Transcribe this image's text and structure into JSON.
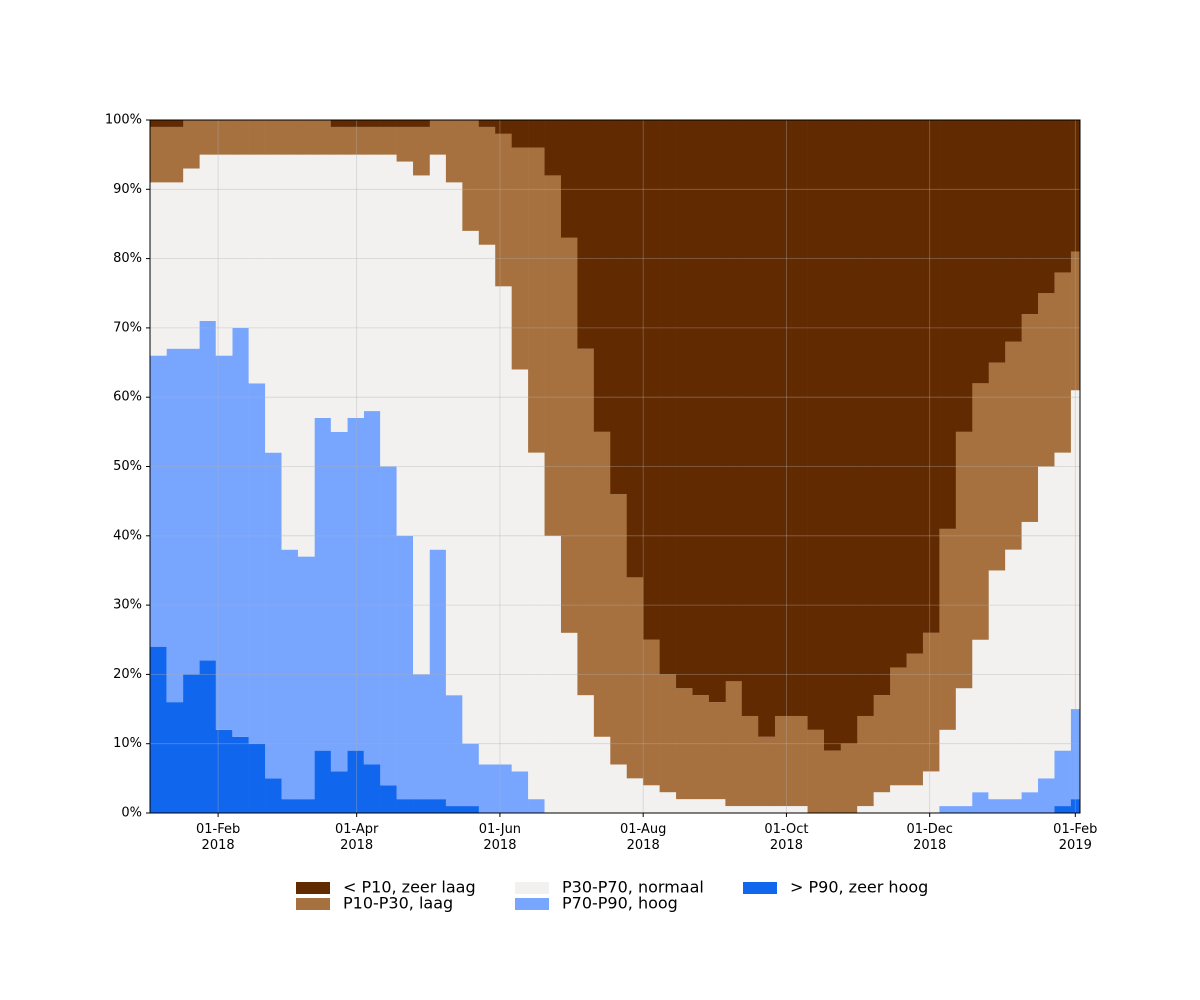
{
  "chart_data": {
    "type": "stacked-step-area",
    "x": [
      "2018-01-03",
      "2018-01-10",
      "2018-01-17",
      "2018-01-24",
      "2018-01-31",
      "2018-02-07",
      "2018-02-14",
      "2018-02-21",
      "2018-02-28",
      "2018-03-07",
      "2018-03-14",
      "2018-03-21",
      "2018-03-28",
      "2018-04-04",
      "2018-04-11",
      "2018-04-18",
      "2018-04-25",
      "2018-05-02",
      "2018-05-09",
      "2018-05-16",
      "2018-05-23",
      "2018-05-30",
      "2018-06-06",
      "2018-06-13",
      "2018-06-20",
      "2018-06-27",
      "2018-07-04",
      "2018-07-11",
      "2018-07-18",
      "2018-07-25",
      "2018-08-01",
      "2018-08-08",
      "2018-08-15",
      "2018-08-22",
      "2018-08-29",
      "2018-09-05",
      "2018-09-12",
      "2018-09-19",
      "2018-09-26",
      "2018-10-03",
      "2018-10-10",
      "2018-10-17",
      "2018-10-24",
      "2018-10-31",
      "2018-11-07",
      "2018-11-14",
      "2018-11-21",
      "2018-11-28",
      "2018-12-05",
      "2018-12-12",
      "2018-12-19",
      "2018-12-26",
      "2019-01-02",
      "2019-01-09",
      "2019-01-16",
      "2019-01-23",
      "2019-01-30"
    ],
    "series": [
      {
        "name": "< P10, zeer laag",
        "color": "#612a00",
        "values": [
          1,
          1,
          0,
          0,
          0,
          0,
          0,
          0,
          0,
          0,
          0,
          1,
          1,
          1,
          1,
          1,
          1,
          0,
          0,
          0,
          1,
          2,
          4,
          4,
          8,
          17,
          33,
          45,
          54,
          66,
          75,
          80,
          82,
          83,
          84,
          81,
          86,
          89,
          86,
          86,
          88,
          91,
          90,
          86,
          83,
          79,
          77,
          74,
          59,
          45,
          38,
          35,
          32,
          28,
          25,
          22,
          19
        ]
      },
      {
        "name": "P10-P30, laag",
        "color": "#a6713f",
        "values": [
          8,
          8,
          7,
          5,
          5,
          5,
          5,
          5,
          5,
          5,
          5,
          4,
          4,
          4,
          4,
          5,
          7,
          5,
          9,
          16,
          17,
          22,
          32,
          44,
          52,
          57,
          50,
          44,
          39,
          29,
          21,
          17,
          16,
          15,
          14,
          18,
          13,
          10,
          13,
          13,
          12,
          9,
          10,
          13,
          14,
          17,
          19,
          20,
          29,
          37,
          37,
          30,
          30,
          30,
          25,
          26,
          20
        ]
      },
      {
        "name": "P30-P70, normaal",
        "color": "#f2f1f0",
        "values": [
          25,
          24,
          26,
          24,
          29,
          25,
          33,
          43,
          57,
          58,
          38,
          40,
          38,
          37,
          45,
          54,
          72,
          57,
          74,
          74,
          75,
          69,
          58,
          50,
          40,
          26,
          17,
          11,
          7,
          5,
          4,
          3,
          2,
          2,
          2,
          1,
          1,
          1,
          1,
          1,
          0,
          0,
          0,
          1,
          3,
          4,
          4,
          6,
          11,
          17,
          22,
          33,
          36,
          39,
          45,
          43,
          46
        ]
      },
      {
        "name": "P70-P90, hoog",
        "color": "#78a6ff",
        "values": [
          42,
          51,
          47,
          49,
          54,
          59,
          52,
          47,
          36,
          35,
          48,
          49,
          48,
          51,
          46,
          38,
          18,
          36,
          16,
          9,
          7,
          7,
          6,
          2,
          0,
          0,
          0,
          0,
          0,
          0,
          0,
          0,
          0,
          0,
          0,
          0,
          0,
          0,
          0,
          0,
          0,
          0,
          0,
          0,
          0,
          0,
          0,
          0,
          1,
          1,
          3,
          2,
          2,
          3,
          5,
          8,
          13
        ]
      },
      {
        "name": "> P90, zeer hoog",
        "color": "#1166ee",
        "values": [
          24,
          16,
          20,
          22,
          12,
          11,
          10,
          5,
          2,
          2,
          9,
          6,
          9,
          7,
          4,
          2,
          2,
          2,
          1,
          1,
          0,
          0,
          0,
          0,
          0,
          0,
          0,
          0,
          0,
          0,
          0,
          0,
          0,
          0,
          0,
          0,
          0,
          0,
          0,
          0,
          0,
          0,
          0,
          0,
          0,
          0,
          0,
          0,
          0,
          0,
          0,
          0,
          0,
          0,
          0,
          1,
          2
        ]
      }
    ],
    "xlim": [
      "2018-01-03",
      "2019-02-03"
    ],
    "xticks": [
      {
        "value": "2018-02-01",
        "label": "01-Feb\n2018"
      },
      {
        "value": "2018-04-01",
        "label": "01-Apr\n2018"
      },
      {
        "value": "2018-06-01",
        "label": "01-Jun\n2018"
      },
      {
        "value": "2018-08-01",
        "label": "01-Aug\n2018"
      },
      {
        "value": "2018-10-01",
        "label": "01-Oct\n2018"
      },
      {
        "value": "2018-12-01",
        "label": "01-Dec\n2018"
      },
      {
        "value": "2019-02-01",
        "label": "01-Feb\n2019"
      }
    ],
    "ylim": [
      0,
      100
    ],
    "yticks": [
      {
        "value": 0,
        "label": "0%"
      },
      {
        "value": 10,
        "label": "10%"
      },
      {
        "value": 20,
        "label": "20%"
      },
      {
        "value": 30,
        "label": "30%"
      },
      {
        "value": 40,
        "label": "40%"
      },
      {
        "value": 50,
        "label": "50%"
      },
      {
        "value": 60,
        "label": "60%"
      },
      {
        "value": 70,
        "label": "70%"
      },
      {
        "value": 80,
        "label": "80%"
      },
      {
        "value": 90,
        "label": "90%"
      },
      {
        "value": 100,
        "label": "100%"
      }
    ],
    "grid": true,
    "legend": "bottom"
  }
}
